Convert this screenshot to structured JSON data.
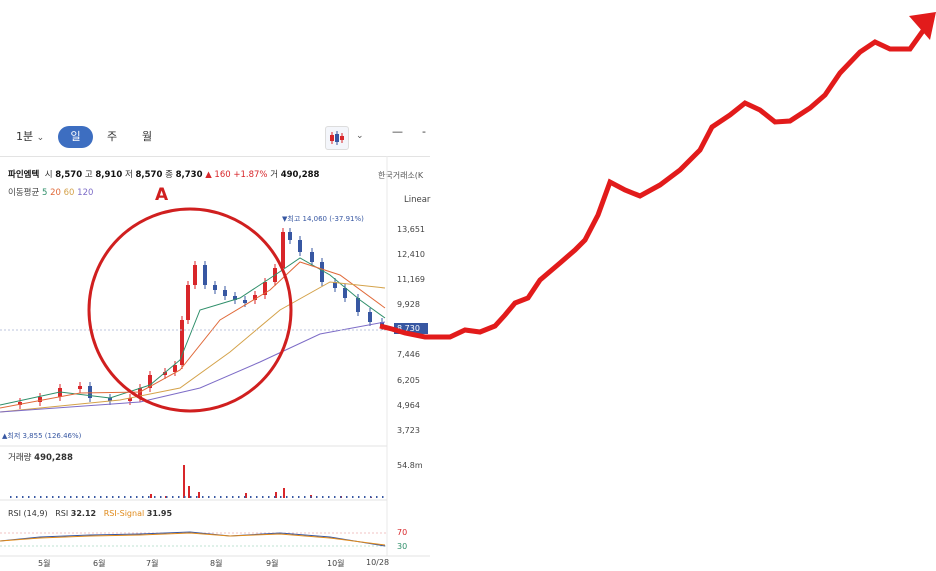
{
  "toolbar": {
    "interval_1": "1분",
    "interval_day": "일",
    "interval_week": "주",
    "interval_month": "월"
  },
  "stock": {
    "name": "파인엠텍",
    "open_label": "시",
    "open": "8,570",
    "high_label": "고",
    "high": "8,910",
    "low_label": "저",
    "low": "8,570",
    "close_label": "종",
    "close": "8,730",
    "change": "▲ 160",
    "change_pct": "+1.87%",
    "volume_label": "거",
    "volume": "490,288",
    "exchange": "한국거래소(K"
  },
  "moving_average": {
    "label": "이동평균",
    "periods": [
      "5",
      "20",
      "60",
      "120"
    ],
    "colors": [
      "#2f8f6a",
      "#e06a3a",
      "#d4a24a",
      "#7d6cc7"
    ]
  },
  "scale": "Linear",
  "price_axis": [
    "13,651",
    "12,410",
    "11,169",
    "9,928",
    "8,730",
    "7,446",
    "6,205",
    "4,964",
    "3,723"
  ],
  "current_price_label": "8,730",
  "annotations": {
    "high": "▼최고 14,060 (-37.91%)",
    "low": "▲최저 3,855 (126.46%)",
    "marker": "A"
  },
  "volume_panel": {
    "label": "거래량",
    "value": "490,288",
    "max": "54.8m"
  },
  "rsi_panel": {
    "label": "RSI (14,9)",
    "rsi_label": "RSI",
    "rsi_value": "32.12",
    "signal_label": "RSI-Signal",
    "signal_value": "31.95",
    "upper": "70",
    "lower": "30"
  },
  "x_axis": [
    "5월",
    "6월",
    "7월",
    "8월",
    "9월",
    "10월",
    "10/28"
  ],
  "colors": {
    "up": "#d8262a",
    "down": "#3757a2",
    "accent": "#3d6ec1",
    "annotation": "#e21b1b"
  }
}
